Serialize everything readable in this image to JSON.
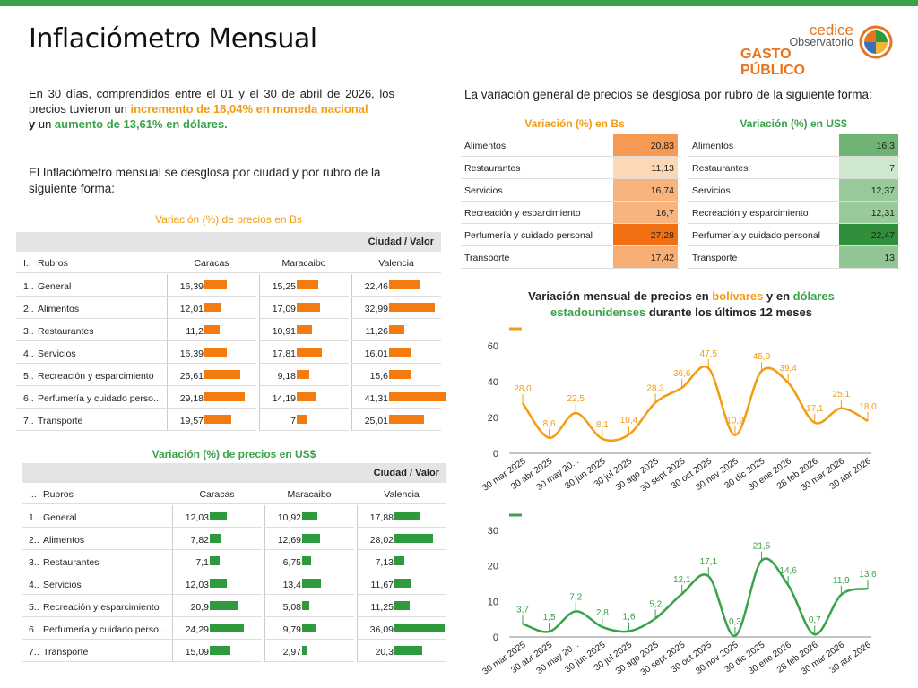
{
  "header": {
    "title": "Inflaciómetro Mensual",
    "logo": {
      "line1": "cedice",
      "line2": "Observatorio",
      "line3": "GASTO PÚBLICO"
    }
  },
  "intro": {
    "p1_a": "En 30 días, comprendidos entre el 01 y el 30 de abril de 2026, los precios tuvieron un ",
    "p1_b": "incremento de 18,04% en moneda nacional",
    "p1_c": "y",
    "p1_d": " un ",
    "p1_e": "aumento de 13,61% en dólares.",
    "p2": "El Inflaciómetro mensual se desglosa por ciudad y por rubro de la siguiente forma:",
    "right": "La variación general de precios se desglosa por rubro de la siguiente forma:"
  },
  "colors": {
    "orange": "#f39c12",
    "green": "#3aa24a",
    "bar_orange": "#f47b0f",
    "bar_green": "#2e9a3e"
  },
  "city_tables": [
    {
      "title": "Variación (%) de precios en Bs",
      "band": "Ciudad / Valor",
      "index_header": "I..",
      "rubro_header": "Rubros",
      "cities": [
        "Caracas",
        "Maracaibo",
        "Valencia"
      ],
      "rows": [
        {
          "idx": "1..",
          "name": "General",
          "values": [
            "16,39",
            "15,25",
            "22,46"
          ],
          "nums": [
            16.39,
            15.25,
            22.46
          ]
        },
        {
          "idx": "2..",
          "name": "Alimentos",
          "values": [
            "12,01",
            "17,09",
            "32,99"
          ],
          "nums": [
            12.01,
            17.09,
            32.99
          ]
        },
        {
          "idx": "3..",
          "name": "Restaurantes",
          "values": [
            "11,2",
            "10,91",
            "11,26"
          ],
          "nums": [
            11.2,
            10.91,
            11.26
          ]
        },
        {
          "idx": "4..",
          "name": "Servicios",
          "values": [
            "16,39",
            "17,81",
            "16,01"
          ],
          "nums": [
            16.39,
            17.81,
            16.01
          ]
        },
        {
          "idx": "5..",
          "name": "Recreación y esparcimiento",
          "values": [
            "25,61",
            "9,18",
            "15,6"
          ],
          "nums": [
            25.61,
            9.18,
            15.6
          ]
        },
        {
          "idx": "6..",
          "name": "Perfumería y cuidado perso...",
          "values": [
            "29,18",
            "14,19",
            "41,31"
          ],
          "nums": [
            29.18,
            14.19,
            41.31
          ]
        },
        {
          "idx": "7..",
          "name": "Transporte",
          "values": [
            "19,57",
            "7",
            "25,01"
          ],
          "nums": [
            19.57,
            7,
            25.01
          ]
        }
      ]
    },
    {
      "title": "Variación (%) de precios en US$",
      "band": "Ciudad / Valor",
      "index_header": "I..",
      "rubro_header": "Rubros",
      "cities": [
        "Caracas",
        "Maracaibo",
        "Valencia"
      ],
      "rows": [
        {
          "idx": "1..",
          "name": "General",
          "values": [
            "12,03",
            "10,92",
            "17,88"
          ],
          "nums": [
            12.03,
            10.92,
            17.88
          ]
        },
        {
          "idx": "2..",
          "name": "Alimentos",
          "values": [
            "7,82",
            "12,69",
            "28,02"
          ],
          "nums": [
            7.82,
            12.69,
            28.02
          ]
        },
        {
          "idx": "3..",
          "name": "Restaurantes",
          "values": [
            "7,1",
            "6,75",
            "7,13"
          ],
          "nums": [
            7.1,
            6.75,
            7.13
          ]
        },
        {
          "idx": "4..",
          "name": "Servicios",
          "values": [
            "12,03",
            "13,4",
            "11,67"
          ],
          "nums": [
            12.03,
            13.4,
            11.67
          ]
        },
        {
          "idx": "5..",
          "name": "Recreación y esparcimiento",
          "values": [
            "20,9",
            "5,08",
            "11,25"
          ],
          "nums": [
            20.9,
            5.08,
            11.25
          ]
        },
        {
          "idx": "6..",
          "name": "Perfumería y cuidado perso...",
          "values": [
            "24,29",
            "9,79",
            "36,09"
          ],
          "nums": [
            24.29,
            9.79,
            36.09
          ]
        },
        {
          "idx": "7..",
          "name": "Transporte",
          "values": [
            "15,09",
            "2,97",
            "20,3"
          ],
          "nums": [
            15.09,
            2.97,
            20.3
          ]
        }
      ]
    }
  ],
  "rubro_tables": {
    "bs_title": "Variación (%) en Bs",
    "usd_title": "Variación (%) en US$",
    "rows": [
      {
        "name": "Alimentos",
        "bs": "20,83",
        "bs_num": 20.83,
        "usd": "16,3",
        "usd_num": 16.3
      },
      {
        "name": "Restaurantes",
        "bs": "11,13",
        "bs_num": 11.13,
        "usd": "7",
        "usd_num": 7
      },
      {
        "name": "Servicios",
        "bs": "16,74",
        "bs_num": 16.74,
        "usd": "12,37",
        "usd_num": 12.37
      },
      {
        "name": "Recreación y esparcimiento",
        "bs": "16,7",
        "bs_num": 16.7,
        "usd": "12,31",
        "usd_num": 12.31
      },
      {
        "name": "Perfumería y cuidado personal",
        "bs": "27,28",
        "bs_num": 27.28,
        "usd": "22,47",
        "usd_num": 22.47
      },
      {
        "name": "Transporte",
        "bs": "17,42",
        "bs_num": 17.42,
        "usd": "13",
        "usd_num": 13
      }
    ]
  },
  "chart_title": {
    "a": "Variación mensual de precios en ",
    "b": "bolívares",
    "c": " y en ",
    "d": "dólares",
    "e": "estadounidenses",
    "f": " durante los últimos 12 meses"
  },
  "chart_data": [
    {
      "type": "line",
      "categories": [
        "30 mar 2025",
        "30 abr 2025",
        "30 may 20...",
        "30 jun 2025",
        "30 jul 2025",
        "30 ago 2025",
        "30 sept 2025",
        "30 oct 2025",
        "30 nov 2025",
        "30 dic 2025",
        "30 ene 2026",
        "28 feb 2026",
        "30 mar 2026",
        "30 abr 2026"
      ],
      "values": [
        28.0,
        8.6,
        22.5,
        8.1,
        10.4,
        28.3,
        36.6,
        47.5,
        10.2,
        45.9,
        39.4,
        17.1,
        25.1,
        18.0
      ],
      "labels": [
        "28,0",
        "8,6",
        "22,5",
        "8,1",
        "10,4",
        "28,3",
        "36,6",
        "47,5",
        "10,2",
        "45,9",
        "39,4",
        "17,1",
        "25,1",
        "18,0"
      ],
      "ylim": [
        0,
        60
      ],
      "yticks": [
        "0",
        "20",
        "40",
        "60"
      ],
      "yticks_num": [
        0,
        20,
        40,
        60
      ],
      "color": "#f39c12"
    },
    {
      "type": "line",
      "categories": [
        "30 mar 2025",
        "30 abr 2025",
        "30 may 20...",
        "30 jun 2025",
        "30 jul 2025",
        "30 ago 2025",
        "30 sept 2025",
        "30 oct 2025",
        "30 nov 2025",
        "30 dic 2025",
        "30 ene 2026",
        "28 feb 2026",
        "30 mar 2026",
        "30 abr 2026"
      ],
      "values": [
        3.7,
        1.5,
        7.2,
        2.8,
        1.6,
        5.2,
        12.1,
        17.1,
        0.3,
        21.5,
        14.6,
        0.7,
        11.9,
        13.6
      ],
      "labels": [
        "3,7",
        "1,5",
        "7,2",
        "2,8",
        "1,6",
        "5,2",
        "12,1",
        "17,1",
        "0,3",
        "21,5",
        "14,6",
        "0,7",
        "11,9",
        "13,6"
      ],
      "ylim": [
        0,
        30
      ],
      "yticks": [
        "0",
        "10",
        "20",
        "30"
      ],
      "yticks_num": [
        0,
        10,
        20,
        30
      ],
      "color": "#3aa24a"
    }
  ]
}
